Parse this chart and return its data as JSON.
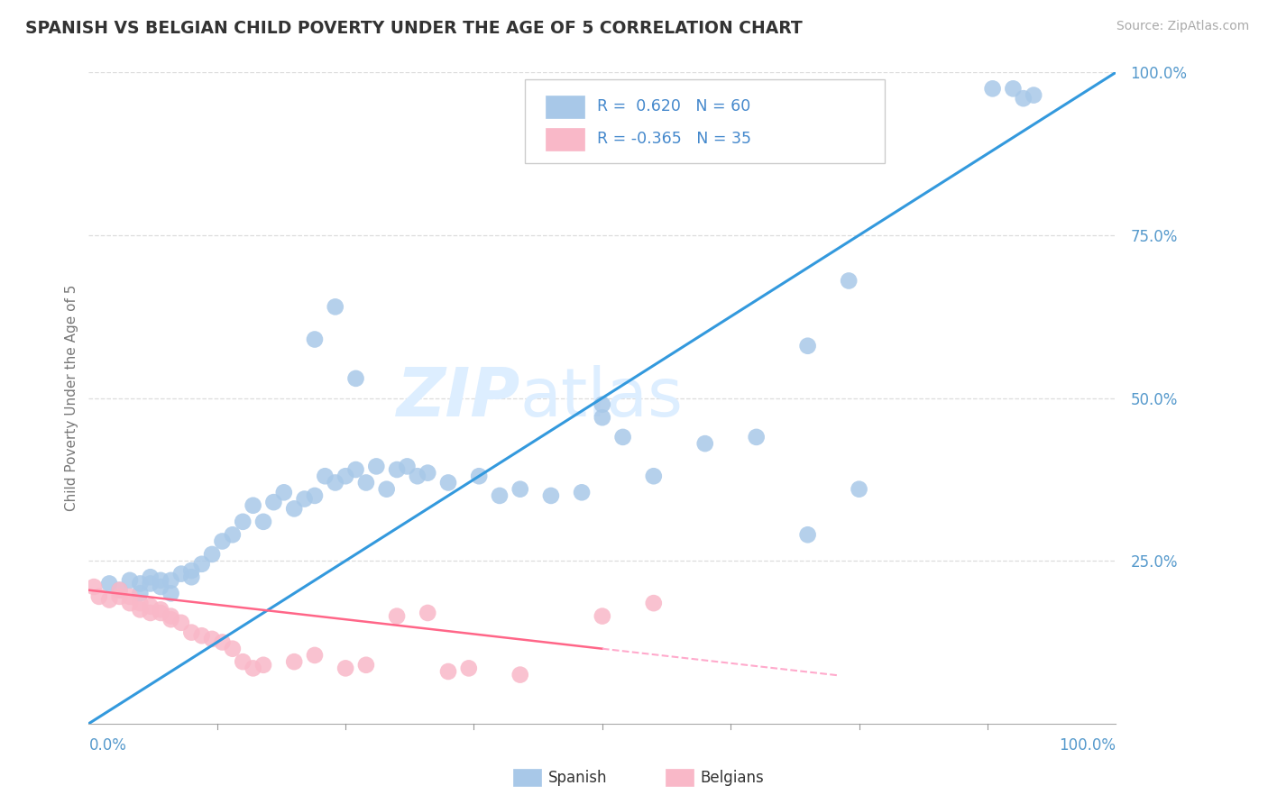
{
  "title": "SPANISH VS BELGIAN CHILD POVERTY UNDER THE AGE OF 5 CORRELATION CHART",
  "source": "Source: ZipAtlas.com",
  "ylabel": "Child Poverty Under the Age of 5",
  "watermark_zip": "ZIP",
  "watermark_atlas": "atlas",
  "spanish_color": "#a8c8e8",
  "spanish_edge": "#a8c8e8",
  "belgian_color": "#f9b8c8",
  "belgian_edge": "#f9b8c8",
  "spanish_line_color": "#3399dd",
  "belgian_line_solid_color": "#ff6688",
  "belgian_line_dash_color": "#ffaacc",
  "tick_color": "#5599cc",
  "title_color": "#333333",
  "source_color": "#aaaaaa",
  "ylabel_color": "#777777",
  "grid_color": "#dddddd",
  "legend_border_color": "#cccccc",
  "legend_text_color": "#4488cc",
  "watermark_color": "#ddeeff",
  "spanish_line_start_x": 0.0,
  "spanish_line_start_y": 0.0,
  "spanish_line_end_x": 1.0,
  "spanish_line_end_y": 1.0,
  "belgian_line_solid_start_x": 0.0,
  "belgian_line_solid_start_y": 0.205,
  "belgian_line_solid_end_x": 0.5,
  "belgian_line_solid_end_y": 0.115,
  "belgian_line_dash_start_x": 0.5,
  "belgian_line_dash_start_y": 0.115,
  "belgian_line_dash_end_x": 0.73,
  "belgian_line_dash_end_y": 0.074,
  "spanish_x": [
    0.02,
    0.03,
    0.04,
    0.05,
    0.05,
    0.06,
    0.06,
    0.07,
    0.07,
    0.08,
    0.08,
    0.09,
    0.1,
    0.1,
    0.11,
    0.12,
    0.13,
    0.14,
    0.15,
    0.16,
    0.17,
    0.18,
    0.19,
    0.2,
    0.21,
    0.22,
    0.23,
    0.24,
    0.25,
    0.26,
    0.27,
    0.28,
    0.29,
    0.3,
    0.31,
    0.32,
    0.33,
    0.35,
    0.38,
    0.4,
    0.42,
    0.45,
    0.48,
    0.5,
    0.52,
    0.55,
    0.6,
    0.65,
    0.7,
    0.75,
    0.22,
    0.24,
    0.26,
    0.5,
    0.7,
    0.74,
    0.88,
    0.9,
    0.91,
    0.92
  ],
  "spanish_y": [
    0.215,
    0.205,
    0.22,
    0.215,
    0.2,
    0.215,
    0.225,
    0.21,
    0.22,
    0.2,
    0.22,
    0.23,
    0.225,
    0.235,
    0.245,
    0.26,
    0.28,
    0.29,
    0.31,
    0.335,
    0.31,
    0.34,
    0.355,
    0.33,
    0.345,
    0.35,
    0.38,
    0.37,
    0.38,
    0.39,
    0.37,
    0.395,
    0.36,
    0.39,
    0.395,
    0.38,
    0.385,
    0.37,
    0.38,
    0.35,
    0.36,
    0.35,
    0.355,
    0.47,
    0.44,
    0.38,
    0.43,
    0.44,
    0.29,
    0.36,
    0.59,
    0.64,
    0.53,
    0.49,
    0.58,
    0.68,
    0.975,
    0.975,
    0.96,
    0.965
  ],
  "belgian_x": [
    0.005,
    0.01,
    0.02,
    0.03,
    0.03,
    0.04,
    0.04,
    0.05,
    0.05,
    0.06,
    0.06,
    0.07,
    0.07,
    0.08,
    0.08,
    0.09,
    0.1,
    0.11,
    0.12,
    0.13,
    0.14,
    0.15,
    0.16,
    0.17,
    0.2,
    0.22,
    0.25,
    0.27,
    0.3,
    0.33,
    0.35,
    0.37,
    0.42,
    0.5,
    0.55
  ],
  "belgian_y": [
    0.21,
    0.195,
    0.19,
    0.195,
    0.205,
    0.185,
    0.195,
    0.175,
    0.185,
    0.17,
    0.18,
    0.17,
    0.175,
    0.165,
    0.16,
    0.155,
    0.14,
    0.135,
    0.13,
    0.125,
    0.115,
    0.095,
    0.085,
    0.09,
    0.095,
    0.105,
    0.085,
    0.09,
    0.165,
    0.17,
    0.08,
    0.085,
    0.075,
    0.165,
    0.185
  ],
  "xlim": [
    0.0,
    1.0
  ],
  "ylim": [
    0.0,
    1.0
  ],
  "ytick_values": [
    0.25,
    0.5,
    0.75,
    1.0
  ],
  "ytick_labels": [
    "25.0%",
    "50.0%",
    "75.0%",
    "100.0%"
  ],
  "xtick_minor": [
    0.125,
    0.25,
    0.375,
    0.5,
    0.625,
    0.75,
    0.875
  ]
}
